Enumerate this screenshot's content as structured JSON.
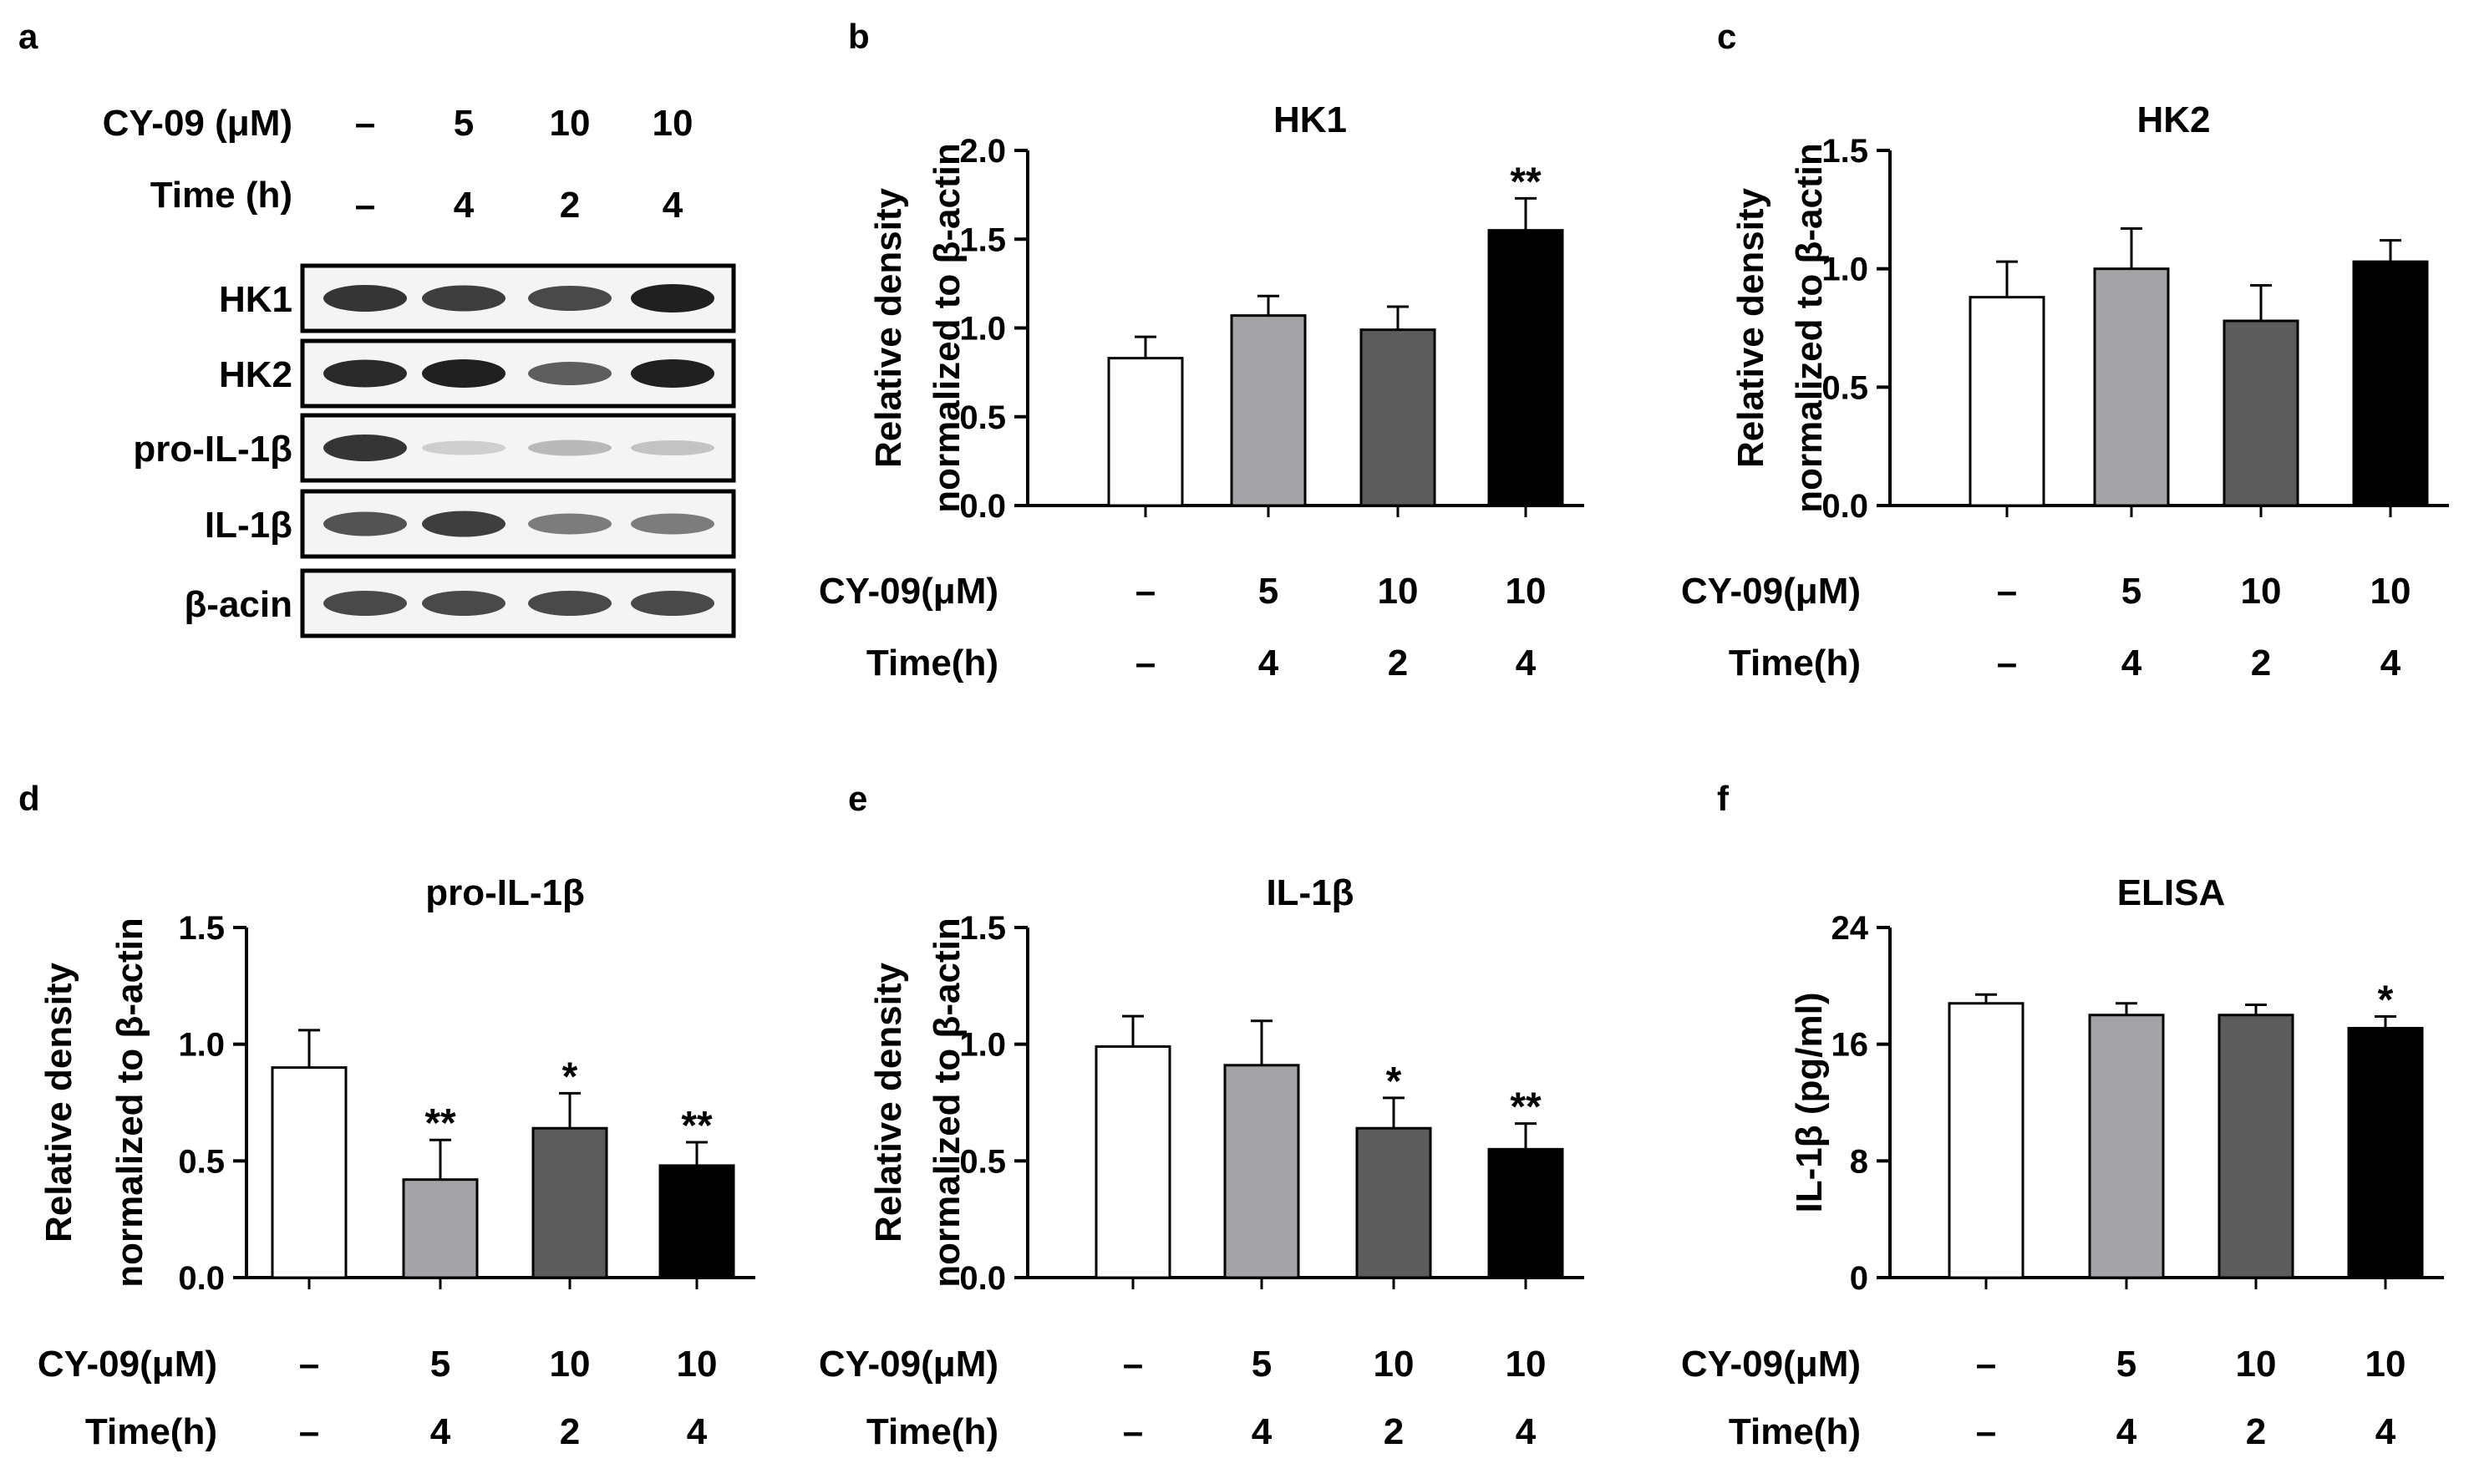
{
  "panel_letters": [
    "a",
    "b",
    "c",
    "d",
    "e",
    "f"
  ],
  "blot": {
    "letter": "a",
    "header_rows": [
      {
        "label": "CY-09 (μM)",
        "values": [
          "–",
          "5",
          "10",
          "10"
        ]
      },
      {
        "label": "Time (h)",
        "values": [
          "–",
          "4",
          "2",
          "4"
        ]
      }
    ],
    "bands": [
      {
        "label": "HK1",
        "intensity": [
          0.9,
          0.85,
          0.8,
          1.0
        ]
      },
      {
        "label": "HK2",
        "intensity": [
          0.95,
          1.0,
          0.7,
          1.0
        ]
      },
      {
        "label": "pro-IL-1β",
        "intensity": [
          0.9,
          0.15,
          0.25,
          0.2
        ]
      },
      {
        "label": "IL-1β",
        "intensity": [
          0.75,
          0.85,
          0.55,
          0.55
        ]
      },
      {
        "label": "β-acin",
        "intensity": [
          0.8,
          0.8,
          0.8,
          0.8
        ]
      }
    ]
  },
  "chart_data": [
    {
      "letter": "b",
      "type": "bar",
      "title": "HK1",
      "ylabel": [
        "Relative density",
        "normalized to β-actin"
      ],
      "ylim": [
        0,
        2.0
      ],
      "yticks": [
        "0.0",
        "0.5",
        "1.0",
        "1.5",
        "2.0"
      ],
      "values": [
        0.83,
        1.07,
        0.99,
        1.55
      ],
      "errors": [
        0.12,
        0.11,
        0.13,
        0.18
      ],
      "significance": [
        "",
        "",
        "",
        "**"
      ],
      "bar_colors": [
        "#ffffff",
        "#a4a4a7",
        "#5c5c5c",
        "#000000"
      ],
      "conditions": [
        {
          "label": "CY-09(μM)",
          "values": [
            "–",
            "5",
            "10",
            "10"
          ]
        },
        {
          "label": "Time(h)",
          "values": [
            "–",
            "4",
            "2",
            "4"
          ]
        }
      ]
    },
    {
      "letter": "c",
      "type": "bar",
      "title": "HK2",
      "ylabel": [
        "Relative density",
        "normalized to β-actin"
      ],
      "ylim": [
        0,
        1.5
      ],
      "yticks": [
        "0.0",
        "0.5",
        "1.0",
        "1.5"
      ],
      "values": [
        0.88,
        1.0,
        0.78,
        1.03
      ],
      "errors": [
        0.15,
        0.17,
        0.15,
        0.09
      ],
      "significance": [
        "",
        "",
        "",
        ""
      ],
      "bar_colors": [
        "#ffffff",
        "#a4a4a7",
        "#5c5c5c",
        "#000000"
      ],
      "conditions": [
        {
          "label": "CY-09(μM)",
          "values": [
            "–",
            "5",
            "10",
            "10"
          ]
        },
        {
          "label": "Time(h)",
          "values": [
            "–",
            "4",
            "2",
            "4"
          ]
        }
      ]
    },
    {
      "letter": "d",
      "type": "bar",
      "title": "pro-IL-1β",
      "ylabel": [
        "Relative density",
        "normalized to β-actin"
      ],
      "ylim": [
        0,
        1.5
      ],
      "yticks": [
        "0.0",
        "0.5",
        "1.0",
        "1.5"
      ],
      "values": [
        0.9,
        0.42,
        0.64,
        0.48
      ],
      "errors": [
        0.16,
        0.17,
        0.15,
        0.1
      ],
      "significance": [
        "",
        "**",
        "*",
        "**"
      ],
      "bar_colors": [
        "#ffffff",
        "#a4a4a7",
        "#5c5c5c",
        "#000000"
      ],
      "conditions": [
        {
          "label": "CY-09(μM)",
          "values": [
            "–",
            "5",
            "10",
            "10"
          ]
        },
        {
          "label": "Time(h)",
          "values": [
            "–",
            "4",
            "2",
            "4"
          ]
        }
      ]
    },
    {
      "letter": "e",
      "type": "bar",
      "title": "IL-1β",
      "ylabel": [
        "Relative density",
        "normalized to β-actin"
      ],
      "ylim": [
        0,
        1.5
      ],
      "yticks": [
        "0.0",
        "0.5",
        "1.0",
        "1.5"
      ],
      "values": [
        0.99,
        0.91,
        0.64,
        0.55
      ],
      "errors": [
        0.13,
        0.19,
        0.13,
        0.11
      ],
      "significance": [
        "",
        "",
        "*",
        "**"
      ],
      "bar_colors": [
        "#ffffff",
        "#a4a4a7",
        "#5c5c5c",
        "#000000"
      ],
      "conditions": [
        {
          "label": "CY-09(μM)",
          "values": [
            "–",
            "5",
            "10",
            "10"
          ]
        },
        {
          "label": "Time(h)",
          "values": [
            "–",
            "4",
            "2",
            "4"
          ]
        }
      ]
    },
    {
      "letter": "f",
      "type": "bar",
      "title": "ELISA",
      "ylabel": [
        "IL-1β (pg/ml)"
      ],
      "ylim": [
        0,
        24
      ],
      "yticks": [
        "0",
        "8",
        "16",
        "24"
      ],
      "values": [
        18.8,
        18.0,
        18.0,
        17.1
      ],
      "errors": [
        0.6,
        0.8,
        0.7,
        0.8
      ],
      "significance": [
        "",
        "",
        "",
        "*"
      ],
      "bar_colors": [
        "#ffffff",
        "#a4a4a7",
        "#5c5c5c",
        "#000000"
      ],
      "conditions": [
        {
          "label": "CY-09(μM)",
          "values": [
            "–",
            "5",
            "10",
            "10"
          ]
        },
        {
          "label": "Time(h)",
          "values": [
            "–",
            "4",
            "2",
            "4"
          ]
        }
      ]
    }
  ]
}
